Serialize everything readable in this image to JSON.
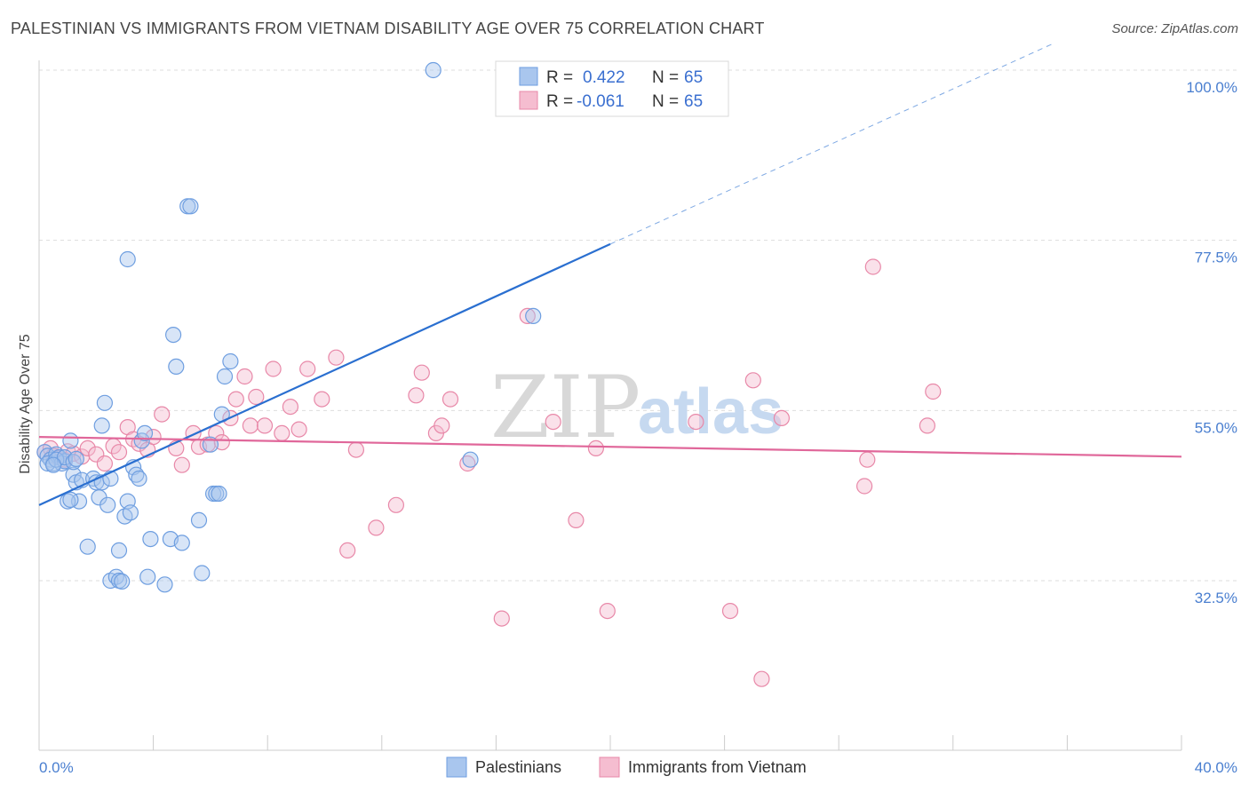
{
  "header": {
    "title": "PALESTINIAN VS IMMIGRANTS FROM VIETNAM DISABILITY AGE OVER 75 CORRELATION CHART",
    "source": "Source: ZipAtlas.com"
  },
  "watermark": {
    "zip": "ZIP",
    "atlas": "atlas"
  },
  "legend": {
    "rows": [
      {
        "r_label": "R =",
        "r_value": "0.422",
        "n_label": "N =",
        "n_value": "65"
      },
      {
        "r_label": "R =",
        "r_value": "-0.061",
        "n_label": "N =",
        "n_value": "65"
      }
    ]
  },
  "colors": {
    "blue_fill": "#a9c6ee",
    "blue_stroke": "#6e9ee0",
    "blue_line": "#2a6fd0",
    "pink_fill": "#f5bdd0",
    "pink_stroke": "#e888a8",
    "pink_line": "#e0679a",
    "grid": "#dddddd",
    "axis_text": "#4a7fd0"
  },
  "chart_data": {
    "type": "scatter",
    "title": "PALESTINIAN VS IMMIGRANTS FROM VIETNAM DISABILITY AGE OVER 75 CORRELATION CHART",
    "xlabel": "",
    "ylabel": "Disability Age Over 75",
    "xlim": [
      0,
      40
    ],
    "ylim": [
      12,
      102
    ],
    "x_tick_labels": [
      "0.0%",
      "40.0%"
    ],
    "y_ticks": [
      32.5,
      55.0,
      77.5,
      100.0
    ],
    "y_tick_labels": [
      "32.5%",
      "55.0%",
      "77.5%",
      "100.0%"
    ],
    "grid": true,
    "legend_position": "top-center",
    "series": [
      {
        "name": "Palestinians",
        "color": "#6e9ee0",
        "points": [
          [
            0.2,
            49.5
          ],
          [
            0.3,
            49.0
          ],
          [
            0.4,
            48.5
          ],
          [
            0.5,
            48.0
          ],
          [
            0.6,
            49.2
          ],
          [
            0.7,
            48.8
          ],
          [
            0.8,
            48.0
          ],
          [
            0.9,
            48.3
          ],
          [
            1.1,
            51.0
          ],
          [
            1.2,
            46.5
          ],
          [
            1.3,
            45.5
          ],
          [
            1.4,
            43.0
          ],
          [
            1.5,
            45.8
          ],
          [
            1.0,
            43.0
          ],
          [
            1.1,
            43.2
          ],
          [
            1.7,
            37.0
          ],
          [
            1.9,
            46.0
          ],
          [
            2.0,
            45.5
          ],
          [
            2.1,
            43.5
          ],
          [
            2.2,
            45.5
          ],
          [
            2.4,
            42.5
          ],
          [
            2.5,
            46.0
          ],
          [
            2.2,
            53.0
          ],
          [
            2.3,
            56.0
          ],
          [
            2.5,
            32.5
          ],
          [
            2.7,
            33.0
          ],
          [
            2.8,
            32.5
          ],
          [
            2.9,
            32.4
          ],
          [
            2.8,
            36.5
          ],
          [
            3.0,
            41.0
          ],
          [
            3.1,
            43.0
          ],
          [
            3.2,
            41.5
          ],
          [
            3.3,
            47.5
          ],
          [
            3.4,
            46.5
          ],
          [
            3.5,
            46.0
          ],
          [
            3.6,
            51.0
          ],
          [
            3.7,
            52.0
          ],
          [
            3.1,
            75.0
          ],
          [
            3.8,
            33.0
          ],
          [
            3.9,
            38.0
          ],
          [
            4.4,
            32.0
          ],
          [
            4.6,
            38.0
          ],
          [
            4.7,
            65.0
          ],
          [
            4.8,
            60.8
          ],
          [
            5.0,
            37.5
          ],
          [
            5.2,
            82.0
          ],
          [
            5.3,
            82.0
          ],
          [
            5.6,
            40.5
          ],
          [
            5.7,
            33.5
          ],
          [
            6.0,
            50.5
          ],
          [
            6.1,
            44.0
          ],
          [
            6.2,
            44.0
          ],
          [
            6.3,
            44.0
          ],
          [
            6.5,
            59.5
          ],
          [
            6.7,
            61.5
          ],
          [
            6.4,
            54.5
          ],
          [
            13.8,
            100.0
          ],
          [
            15.1,
            48.5
          ],
          [
            17.3,
            67.5
          ],
          [
            0.3,
            48.0
          ],
          [
            0.6,
            48.5
          ],
          [
            0.9,
            48.8
          ],
          [
            1.2,
            48.2
          ],
          [
            0.5,
            47.8
          ],
          [
            1.3,
            48.6
          ]
        ]
      },
      {
        "name": "Immigrants from Vietnam",
        "color": "#e888a8",
        "points": [
          [
            0.2,
            49.5
          ],
          [
            0.4,
            50.0
          ],
          [
            0.5,
            49.0
          ],
          [
            0.7,
            48.8
          ],
          [
            0.9,
            48.5
          ],
          [
            1.0,
            49.6
          ],
          [
            1.2,
            49.3
          ],
          [
            1.5,
            48.9
          ],
          [
            1.7,
            50.0
          ],
          [
            2.0,
            49.2
          ],
          [
            2.3,
            48.0
          ],
          [
            2.6,
            50.3
          ],
          [
            2.8,
            49.5
          ],
          [
            3.1,
            52.8
          ],
          [
            3.3,
            51.2
          ],
          [
            3.5,
            50.6
          ],
          [
            3.8,
            49.8
          ],
          [
            4.0,
            51.5
          ],
          [
            4.3,
            54.5
          ],
          [
            4.8,
            50.0
          ],
          [
            5.0,
            47.8
          ],
          [
            5.4,
            52.0
          ],
          [
            5.6,
            50.2
          ],
          [
            5.9,
            50.5
          ],
          [
            6.2,
            52.0
          ],
          [
            6.4,
            50.8
          ],
          [
            6.7,
            54.0
          ],
          [
            6.9,
            56.5
          ],
          [
            7.2,
            59.5
          ],
          [
            7.4,
            53.0
          ],
          [
            7.6,
            56.8
          ],
          [
            7.9,
            53.0
          ],
          [
            8.2,
            60.5
          ],
          [
            8.5,
            52.0
          ],
          [
            8.8,
            55.5
          ],
          [
            9.1,
            52.5
          ],
          [
            9.4,
            60.5
          ],
          [
            9.9,
            56.5
          ],
          [
            10.4,
            62.0
          ],
          [
            10.8,
            36.5
          ],
          [
            11.1,
            49.8
          ],
          [
            11.8,
            39.5
          ],
          [
            12.5,
            42.5
          ],
          [
            13.2,
            57.0
          ],
          [
            13.4,
            60.0
          ],
          [
            13.9,
            52.0
          ],
          [
            14.1,
            53.0
          ],
          [
            14.4,
            56.5
          ],
          [
            15.0,
            48.0
          ],
          [
            16.2,
            27.5
          ],
          [
            17.1,
            67.5
          ],
          [
            18.0,
            53.5
          ],
          [
            18.8,
            40.5
          ],
          [
            19.5,
            50.0
          ],
          [
            19.9,
            28.5
          ],
          [
            23.0,
            53.5
          ],
          [
            24.2,
            28.5
          ],
          [
            25.0,
            59.0
          ],
          [
            25.3,
            19.5
          ],
          [
            26.0,
            54.0
          ],
          [
            29.2,
            74.0
          ],
          [
            29.0,
            48.5
          ],
          [
            28.9,
            45.0
          ],
          [
            31.1,
            53.0
          ],
          [
            31.3,
            57.5
          ]
        ]
      }
    ],
    "trend_lines": [
      {
        "series": "Palestinians",
        "x": [
          0,
          20
        ],
        "y": [
          42.5,
          77.0
        ],
        "extension_x": [
          20,
          35.5
        ],
        "extension_y": [
          77.0,
          103.5
        ],
        "extension_style": "dashed"
      },
      {
        "series": "Immigrants from Vietnam",
        "x": [
          0,
          40
        ],
        "y": [
          51.5,
          48.9
        ]
      }
    ]
  },
  "bottom_legend": {
    "items": [
      {
        "label": "Palestinians"
      },
      {
        "label": "Immigrants from Vietnam"
      }
    ]
  }
}
